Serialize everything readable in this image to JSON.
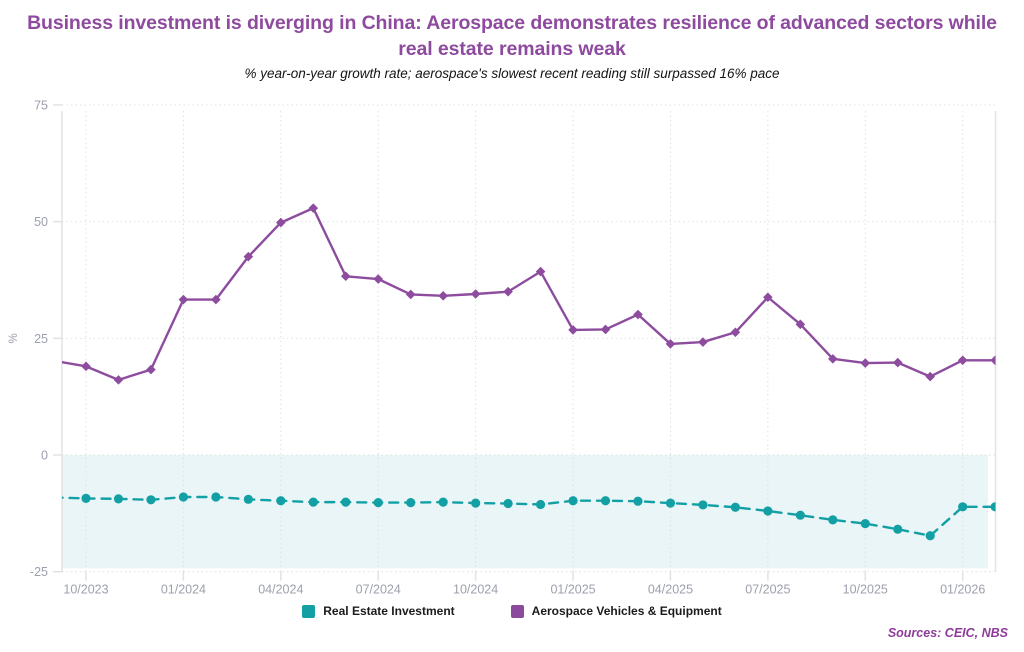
{
  "header": {
    "title": "Business investment is diverging in China: Aerospace demonstrates resilience of advanced sectors while real estate remains weak",
    "subtitle": "% year-on-year growth rate; aerospace's slowest recent reading still surpassed 16% pace",
    "title_color": "#8e4a9e"
  },
  "legend": [
    {
      "label": "Real Estate Investment",
      "color": "#13a0a5"
    },
    {
      "label": "Aerospace Vehicles & Equipment",
      "color": "#8c4a9c"
    }
  ],
  "footer": {
    "sources": "Sources: CEIC, NBS",
    "color": "#8e3b9a"
  },
  "chart_data": {
    "type": "line",
    "x": [
      "09/2023",
      "10/2023",
      "11/2023",
      "12/2023",
      "01/2024",
      "02/2024",
      "03/2024",
      "04/2024",
      "05/2024",
      "06/2024",
      "07/2024",
      "08/2024",
      "09/2024",
      "10/2024",
      "11/2024",
      "12/2024",
      "01/2025",
      "02/2025",
      "03/2025",
      "04/2025",
      "05/2025",
      "06/2025",
      "07/2025",
      "08/2025",
      "09/2025",
      "10/2025",
      "11/2025",
      "12/2025",
      "01/2026",
      "02/2026"
    ],
    "series": [
      {
        "name": "Real Estate Investment",
        "color": "#13a0a5",
        "style": "dashed",
        "marker": "circle",
        "values": [
          -9.1,
          -9.3,
          -9.4,
          -9.6,
          -9.0,
          -9.0,
          -9.5,
          -9.8,
          -10.1,
          -10.1,
          -10.2,
          -10.2,
          -10.1,
          -10.3,
          -10.4,
          -10.6,
          -9.8,
          -9.8,
          -9.9,
          -10.3,
          -10.7,
          -11.2,
          -12.0,
          -12.9,
          -13.9,
          -14.7,
          -15.9,
          -17.3,
          -11.1,
          -11.1
        ]
      },
      {
        "name": "Aerospace Vehicles & Equipment",
        "color": "#8d4c9e",
        "style": "solid",
        "marker": "diamond",
        "values": [
          20.2,
          19.0,
          16.1,
          18.3,
          33.3,
          33.3,
          42.5,
          49.8,
          52.9,
          38.3,
          37.7,
          34.4,
          34.1,
          34.5,
          35.0,
          39.3,
          26.8,
          26.9,
          30.1,
          23.8,
          24.2,
          26.3,
          33.8,
          28.0,
          20.6,
          19.7,
          19.8,
          16.8,
          20.3,
          20.3
        ]
      }
    ],
    "x_tick_labels": [
      "10/2023",
      "01/2024",
      "04/2024",
      "07/2024",
      "10/2024",
      "01/2025",
      "04/2025",
      "07/2025",
      "10/2025",
      "01/2026"
    ],
    "y_ticks": [
      75,
      50,
      25,
      0,
      -25
    ],
    "ylim": [
      -25,
      75
    ],
    "ylabel": "%",
    "grid": "dotted",
    "grid_color": "#e0e0e4",
    "axis_color": "#e2e2e6",
    "tick_label_color": "#9da0ac",
    "negative_band": {
      "from": 0,
      "to": -24.3,
      "fill": "#e9f5f7"
    },
    "legend_position": "bottom"
  }
}
